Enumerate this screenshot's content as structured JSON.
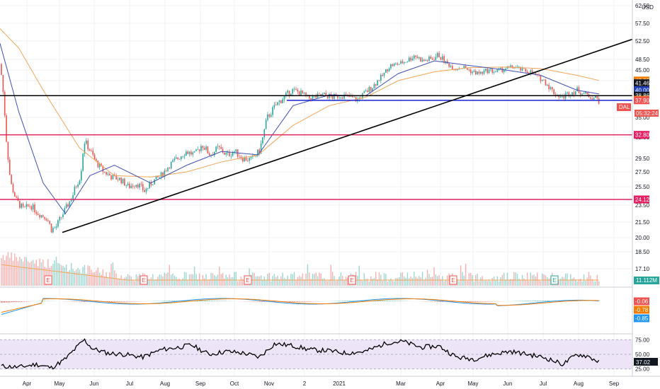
{
  "chart_data": {
    "type": "candlestick",
    "currency": "USD",
    "symbol": "DAL",
    "countdown": "05:32:24",
    "x_ticks": [
      "Apr",
      "May",
      "Jun",
      "Jul",
      "Aug",
      "Sep",
      "Oct",
      "Nov",
      "2",
      "2021",
      "Mar",
      "Apr",
      "May",
      "Jun",
      "Jul",
      "Aug",
      "Sep"
    ],
    "y_ticks": [
      "62.50",
      "57.50",
      "52.50",
      "48.50",
      "45.00",
      "42.00",
      "38.00",
      "35.00",
      "32.50",
      "29.50",
      "27.50",
      "25.50",
      "23.50",
      "21.50",
      "20.00",
      "18.50",
      "17.10"
    ],
    "price_tags": [
      {
        "label": "42.03",
        "value": 42.03,
        "color": "#f57c00"
      },
      {
        "label": "41.46",
        "value": 41.46,
        "color": "#131722"
      },
      {
        "label": "40.00",
        "value": 40.0,
        "color": "#1e3fb8"
      },
      {
        "label": "38.86",
        "value": 38.86,
        "color": "#131722"
      },
      {
        "label": "38.00",
        "value": 38.0,
        "color": "#ff9800"
      },
      {
        "label": "37.90",
        "value": 37.9,
        "color": "#ef5350"
      },
      {
        "label": "32.80",
        "value": 32.8,
        "color": "#e91e63"
      },
      {
        "label": "24.12",
        "value": 24.12,
        "color": "#e91e63"
      }
    ],
    "horizontal_lines": [
      {
        "value": 38.86,
        "color": "#000000"
      },
      {
        "value": 37.9,
        "color": "#1a23d6"
      },
      {
        "value": 32.8,
        "color": "#e0245e"
      },
      {
        "value": 24.12,
        "color": "#e0245e"
      }
    ],
    "trendline": {
      "from": {
        "date": "May 2020",
        "value": 20.5
      },
      "to": {
        "date": "Sep 2021",
        "value": 53.0
      },
      "color": "#000000"
    },
    "close_path": [
      [
        "2020-03-25",
        47
      ],
      [
        "2020-03-30",
        33
      ],
      [
        "2020-04-03",
        26
      ],
      [
        "2020-04-08",
        24
      ],
      [
        "2020-04-14",
        23
      ],
      [
        "2020-04-20",
        23.5
      ],
      [
        "2020-04-27",
        22.5
      ],
      [
        "2020-05-04",
        22
      ],
      [
        "2020-05-08",
        20.8
      ],
      [
        "2020-05-12",
        21
      ],
      [
        "2020-05-18",
        22.5
      ],
      [
        "2020-05-26",
        24.5
      ],
      [
        "2020-06-02",
        27
      ],
      [
        "2020-06-05",
        32
      ],
      [
        "2020-06-09",
        31
      ],
      [
        "2020-06-15",
        29
      ],
      [
        "2020-06-22",
        27.5
      ],
      [
        "2020-06-29",
        26.8
      ],
      [
        "2020-07-06",
        26.5
      ],
      [
        "2020-07-13",
        25.5
      ],
      [
        "2020-07-20",
        26
      ],
      [
        "2020-07-27",
        25
      ],
      [
        "2020-08-03",
        26.2
      ],
      [
        "2020-08-10",
        27
      ],
      [
        "2020-08-17",
        28.5
      ],
      [
        "2020-08-24",
        29.5
      ],
      [
        "2020-08-31",
        30.5
      ],
      [
        "2020-09-08",
        30
      ],
      [
        "2020-09-14",
        31.5
      ],
      [
        "2020-09-21",
        30
      ],
      [
        "2020-09-28",
        31
      ],
      [
        "2020-10-05",
        30
      ],
      [
        "2020-10-12",
        30.5
      ],
      [
        "2020-10-19",
        29.5
      ],
      [
        "2020-10-26",
        29.3
      ],
      [
        "2020-11-02",
        30.5
      ],
      [
        "2020-11-09",
        35
      ],
      [
        "2020-11-16",
        37
      ],
      [
        "2020-11-23",
        38.5
      ],
      [
        "2020-11-30",
        40
      ],
      [
        "2020-12-07",
        39.5
      ],
      [
        "2020-12-14",
        38.3
      ],
      [
        "2020-12-21",
        38.6
      ],
      [
        "2020-12-28",
        39
      ],
      [
        "2021-01-04",
        38.5
      ],
      [
        "2021-01-11",
        39
      ],
      [
        "2021-01-19",
        38.5
      ],
      [
        "2021-01-25",
        38
      ],
      [
        "2021-02-01",
        39.5
      ],
      [
        "2021-02-08",
        41
      ],
      [
        "2021-02-16",
        43.5
      ],
      [
        "2021-02-22",
        46.5
      ],
      [
        "2021-03-01",
        47
      ],
      [
        "2021-03-08",
        48
      ],
      [
        "2021-03-15",
        49.5
      ],
      [
        "2021-03-22",
        48
      ],
      [
        "2021-03-29",
        48.5
      ],
      [
        "2021-04-05",
        49.5
      ],
      [
        "2021-04-12",
        47
      ],
      [
        "2021-04-19",
        45.5
      ],
      [
        "2021-04-26",
        46
      ],
      [
        "2021-05-03",
        44.5
      ],
      [
        "2021-05-10",
        44
      ],
      [
        "2021-05-17",
        45
      ],
      [
        "2021-05-24",
        44.5
      ],
      [
        "2021-06-01",
        45.5
      ],
      [
        "2021-06-08",
        46
      ],
      [
        "2021-06-15",
        45
      ],
      [
        "2021-06-22",
        44.5
      ],
      [
        "2021-06-29",
        43
      ],
      [
        "2021-07-06",
        41.5
      ],
      [
        "2021-07-12",
        39.5
      ],
      [
        "2021-07-19",
        38.5
      ],
      [
        "2021-07-26",
        39.5
      ],
      [
        "2021-08-02",
        40
      ],
      [
        "2021-08-09",
        39
      ],
      [
        "2021-08-16",
        38.5
      ],
      [
        "2021-08-20",
        37.9
      ]
    ],
    "sma_fast": [
      [
        "2020-03-25",
        52
      ],
      [
        "2020-04-10",
        36
      ],
      [
        "2020-05-01",
        26
      ],
      [
        "2020-05-20",
        22.5
      ],
      [
        "2020-06-10",
        27
      ],
      [
        "2020-07-01",
        28.5
      ],
      [
        "2020-08-01",
        26
      ],
      [
        "2020-09-01",
        28.5
      ],
      [
        "2020-10-01",
        30.5
      ],
      [
        "2020-11-01",
        30
      ],
      [
        "2020-12-01",
        37
      ],
      [
        "2021-01-01",
        39
      ],
      [
        "2021-02-01",
        38.8
      ],
      [
        "2021-03-01",
        44
      ],
      [
        "2021-04-01",
        48
      ],
      [
        "2021-05-01",
        46.5
      ],
      [
        "2021-06-01",
        45
      ],
      [
        "2021-07-01",
        43.5
      ],
      [
        "2021-08-01",
        40
      ],
      [
        "2021-08-20",
        39.2
      ]
    ],
    "sma_slow": [
      [
        "2020-03-25",
        56
      ],
      [
        "2020-04-10",
        51
      ],
      [
        "2020-05-01",
        40
      ],
      [
        "2020-06-01",
        31
      ],
      [
        "2020-07-01",
        27
      ],
      [
        "2020-08-01",
        26.8
      ],
      [
        "2020-09-01",
        27.5
      ],
      [
        "2020-10-01",
        29
      ],
      [
        "2020-11-01",
        30
      ],
      [
        "2020-12-01",
        34
      ],
      [
        "2021-01-01",
        37
      ],
      [
        "2021-02-01",
        38.5
      ],
      [
        "2021-03-01",
        42
      ],
      [
        "2021-04-01",
        44.5
      ],
      [
        "2021-05-01",
        45.8
      ],
      [
        "2021-06-01",
        46
      ],
      [
        "2021-07-01",
        45.5
      ],
      [
        "2021-08-01",
        43.5
      ],
      [
        "2021-08-20",
        42.03
      ]
    ],
    "volume_label": "11.112M",
    "volume_earnings_markers": [
      "E",
      "E",
      "E",
      "E",
      "E",
      "E"
    ],
    "macd": {
      "labels": [
        {
          "label": "-0.06",
          "color": "#ef5350"
        },
        {
          "label": "-0.78",
          "color": "#f57c00"
        },
        {
          "label": "-0.85",
          "color": "#2196f3"
        }
      ]
    },
    "rsi": {
      "value_label": "37.02",
      "levels": [
        "75.00",
        "50.00",
        "25.00"
      ],
      "ylim": [
        15,
        85
      ],
      "series": [
        [
          "2020-03-25",
          30
        ],
        [
          "2020-04-10",
          28
        ],
        [
          "2020-04-25",
          33
        ],
        [
          "2020-05-08",
          27
        ],
        [
          "2020-05-20",
          42
        ],
        [
          "2020-06-05",
          75
        ],
        [
          "2020-06-12",
          60
        ],
        [
          "2020-06-25",
          52
        ],
        [
          "2020-07-10",
          50
        ],
        [
          "2020-07-25",
          45
        ],
        [
          "2020-08-10",
          58
        ],
        [
          "2020-08-25",
          62
        ],
        [
          "2020-09-05",
          66
        ],
        [
          "2020-09-20",
          50
        ],
        [
          "2020-10-05",
          55
        ],
        [
          "2020-10-20",
          52
        ],
        [
          "2020-11-02",
          45
        ],
        [
          "2020-11-15",
          68
        ],
        [
          "2020-11-30",
          65
        ],
        [
          "2020-12-15",
          58
        ],
        [
          "2021-01-01",
          56
        ],
        [
          "2021-01-15",
          52
        ],
        [
          "2021-02-01",
          55
        ],
        [
          "2021-02-20",
          70
        ],
        [
          "2021-03-05",
          72
        ],
        [
          "2021-03-20",
          62
        ],
        [
          "2021-04-05",
          64
        ],
        [
          "2021-04-20",
          45
        ],
        [
          "2021-05-05",
          42
        ],
        [
          "2021-05-20",
          50
        ],
        [
          "2021-06-05",
          55
        ],
        [
          "2021-06-20",
          50
        ],
        [
          "2021-07-05",
          44
        ],
        [
          "2021-07-20",
          33
        ],
        [
          "2021-08-01",
          50
        ],
        [
          "2021-08-10",
          47
        ],
        [
          "2021-08-20",
          37
        ]
      ]
    }
  }
}
